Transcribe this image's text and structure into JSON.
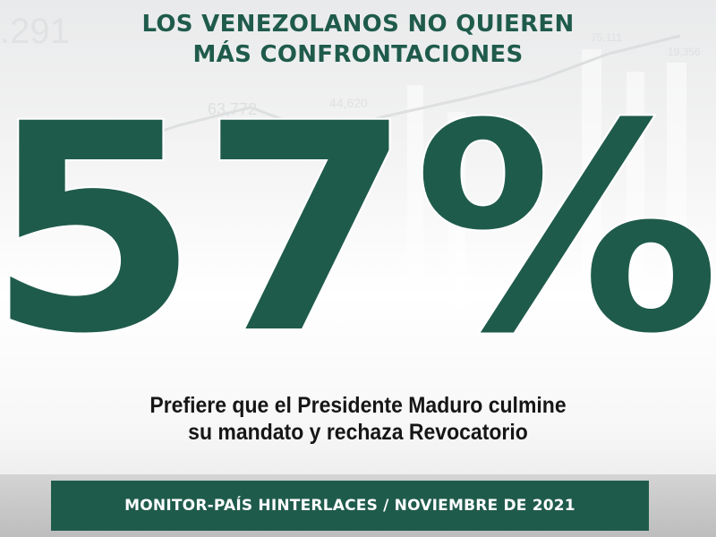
{
  "headline": {
    "line1": "LOS VENEZOLANOS NO QUIEREN",
    "line2": "MÁS CONFRONTACIONES"
  },
  "main_figure": {
    "percent_label": "57%",
    "value": 57
  },
  "description": {
    "line1": "Prefiere que el  Presidente Maduro culmine",
    "line2": "su mandato y rechaza Revocatorio"
  },
  "footer": {
    "source_label": "MONITOR-PAÍS HINTERLACES / NOVIEMBRE DE 2021"
  },
  "colors": {
    "brand_green": "#1f5b4b",
    "text_dark": "#161616",
    "footer_text": "#ffffff"
  }
}
